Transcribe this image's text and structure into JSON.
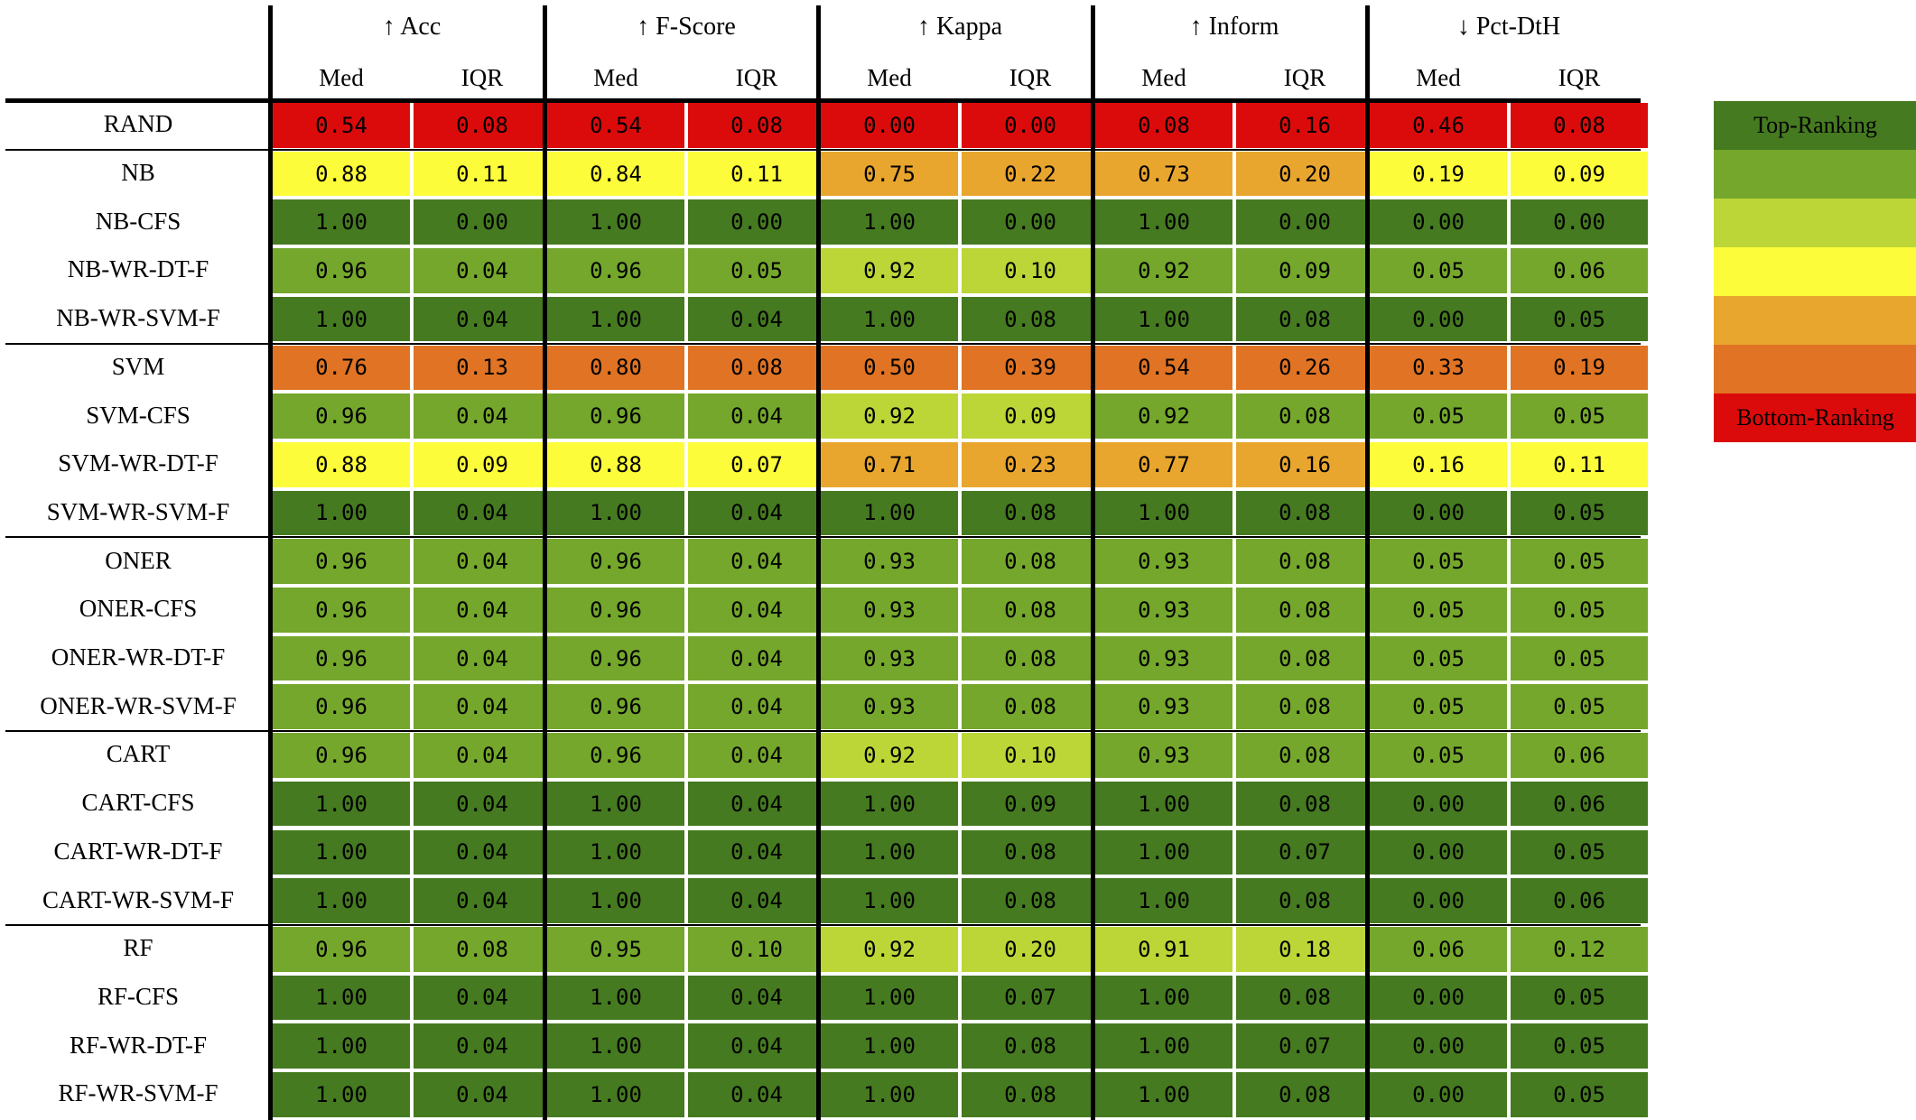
{
  "colors": {
    "darkgreen": "#457a20",
    "green": "#74a72b",
    "lightgreen": "#bcd637",
    "yellow": "#fdfc3a",
    "lightorange": "#e9a62e",
    "orange": "#e07324",
    "red": "#dc0b0b"
  },
  "metrics": [
    {
      "label": "↑ Acc"
    },
    {
      "label": "↑ F-Score"
    },
    {
      "label": "↑ Kappa"
    },
    {
      "label": "↑ Inform"
    },
    {
      "label": "↓ Pct-DtH"
    }
  ],
  "subheaders": [
    "Med",
    "IQR"
  ],
  "rows": [
    {
      "name": "RAND",
      "values": [
        "0.54",
        "0.08",
        "0.54",
        "0.08",
        "0.00",
        "0.00",
        "0.08",
        "0.16",
        "0.46",
        "0.08"
      ],
      "colors": [
        "red",
        "red",
        "red",
        "red",
        "red",
        "red",
        "red",
        "red",
        "red",
        "red"
      ]
    },
    {
      "name": "NB",
      "values": [
        "0.88",
        "0.11",
        "0.84",
        "0.11",
        "0.75",
        "0.22",
        "0.73",
        "0.20",
        "0.19",
        "0.09"
      ],
      "colors": [
        "yellow",
        "yellow",
        "yellow",
        "yellow",
        "lightorange",
        "lightorange",
        "lightorange",
        "lightorange",
        "yellow",
        "yellow"
      ]
    },
    {
      "name": "NB-CFS",
      "values": [
        "1.00",
        "0.00",
        "1.00",
        "0.00",
        "1.00",
        "0.00",
        "1.00",
        "0.00",
        "0.00",
        "0.00"
      ],
      "colors": [
        "darkgreen",
        "darkgreen",
        "darkgreen",
        "darkgreen",
        "darkgreen",
        "darkgreen",
        "darkgreen",
        "darkgreen",
        "darkgreen",
        "darkgreen"
      ]
    },
    {
      "name": "NB-WR-DT-F",
      "values": [
        "0.96",
        "0.04",
        "0.96",
        "0.05",
        "0.92",
        "0.10",
        "0.92",
        "0.09",
        "0.05",
        "0.06"
      ],
      "colors": [
        "green",
        "green",
        "green",
        "green",
        "lightgreen",
        "lightgreen",
        "green",
        "green",
        "green",
        "green"
      ]
    },
    {
      "name": "NB-WR-SVM-F",
      "values": [
        "1.00",
        "0.04",
        "1.00",
        "0.04",
        "1.00",
        "0.08",
        "1.00",
        "0.08",
        "0.00",
        "0.05"
      ],
      "colors": [
        "darkgreen",
        "darkgreen",
        "darkgreen",
        "darkgreen",
        "darkgreen",
        "darkgreen",
        "darkgreen",
        "darkgreen",
        "darkgreen",
        "darkgreen"
      ]
    },
    {
      "name": "SVM",
      "values": [
        "0.76",
        "0.13",
        "0.80",
        "0.08",
        "0.50",
        "0.39",
        "0.54",
        "0.26",
        "0.33",
        "0.19"
      ],
      "colors": [
        "orange",
        "orange",
        "orange",
        "orange",
        "orange",
        "orange",
        "orange",
        "orange",
        "orange",
        "orange"
      ]
    },
    {
      "name": "SVM-CFS",
      "values": [
        "0.96",
        "0.04",
        "0.96",
        "0.04",
        "0.92",
        "0.09",
        "0.92",
        "0.08",
        "0.05",
        "0.05"
      ],
      "colors": [
        "green",
        "green",
        "green",
        "green",
        "lightgreen",
        "lightgreen",
        "green",
        "green",
        "green",
        "green"
      ]
    },
    {
      "name": "SVM-WR-DT-F",
      "values": [
        "0.88",
        "0.09",
        "0.88",
        "0.07",
        "0.71",
        "0.23",
        "0.77",
        "0.16",
        "0.16",
        "0.11"
      ],
      "colors": [
        "yellow",
        "yellow",
        "yellow",
        "yellow",
        "lightorange",
        "lightorange",
        "lightorange",
        "lightorange",
        "yellow",
        "yellow"
      ]
    },
    {
      "name": "SVM-WR-SVM-F",
      "values": [
        "1.00",
        "0.04",
        "1.00",
        "0.04",
        "1.00",
        "0.08",
        "1.00",
        "0.08",
        "0.00",
        "0.05"
      ],
      "colors": [
        "darkgreen",
        "darkgreen",
        "darkgreen",
        "darkgreen",
        "darkgreen",
        "darkgreen",
        "darkgreen",
        "darkgreen",
        "darkgreen",
        "darkgreen"
      ]
    },
    {
      "name": "ONER",
      "values": [
        "0.96",
        "0.04",
        "0.96",
        "0.04",
        "0.93",
        "0.08",
        "0.93",
        "0.08",
        "0.05",
        "0.05"
      ],
      "colors": [
        "green",
        "green",
        "green",
        "green",
        "green",
        "green",
        "green",
        "green",
        "green",
        "green"
      ]
    },
    {
      "name": "ONER-CFS",
      "values": [
        "0.96",
        "0.04",
        "0.96",
        "0.04",
        "0.93",
        "0.08",
        "0.93",
        "0.08",
        "0.05",
        "0.05"
      ],
      "colors": [
        "green",
        "green",
        "green",
        "green",
        "green",
        "green",
        "green",
        "green",
        "green",
        "green"
      ]
    },
    {
      "name": "ONER-WR-DT-F",
      "values": [
        "0.96",
        "0.04",
        "0.96",
        "0.04",
        "0.93",
        "0.08",
        "0.93",
        "0.08",
        "0.05",
        "0.05"
      ],
      "colors": [
        "green",
        "green",
        "green",
        "green",
        "green",
        "green",
        "green",
        "green",
        "green",
        "green"
      ]
    },
    {
      "name": "ONER-WR-SVM-F",
      "values": [
        "0.96",
        "0.04",
        "0.96",
        "0.04",
        "0.93",
        "0.08",
        "0.93",
        "0.08",
        "0.05",
        "0.05"
      ],
      "colors": [
        "green",
        "green",
        "green",
        "green",
        "green",
        "green",
        "green",
        "green",
        "green",
        "green"
      ]
    },
    {
      "name": "CART",
      "values": [
        "0.96",
        "0.04",
        "0.96",
        "0.04",
        "0.92",
        "0.10",
        "0.93",
        "0.08",
        "0.05",
        "0.06"
      ],
      "colors": [
        "green",
        "green",
        "green",
        "green",
        "lightgreen",
        "lightgreen",
        "green",
        "green",
        "green",
        "green"
      ]
    },
    {
      "name": "CART-CFS",
      "values": [
        "1.00",
        "0.04",
        "1.00",
        "0.04",
        "1.00",
        "0.09",
        "1.00",
        "0.08",
        "0.00",
        "0.06"
      ],
      "colors": [
        "darkgreen",
        "darkgreen",
        "darkgreen",
        "darkgreen",
        "darkgreen",
        "darkgreen",
        "darkgreen",
        "darkgreen",
        "darkgreen",
        "darkgreen"
      ]
    },
    {
      "name": "CART-WR-DT-F",
      "values": [
        "1.00",
        "0.04",
        "1.00",
        "0.04",
        "1.00",
        "0.08",
        "1.00",
        "0.07",
        "0.00",
        "0.05"
      ],
      "colors": [
        "darkgreen",
        "darkgreen",
        "darkgreen",
        "darkgreen",
        "darkgreen",
        "darkgreen",
        "darkgreen",
        "darkgreen",
        "darkgreen",
        "darkgreen"
      ]
    },
    {
      "name": "CART-WR-SVM-F",
      "values": [
        "1.00",
        "0.04",
        "1.00",
        "0.04",
        "1.00",
        "0.08",
        "1.00",
        "0.08",
        "0.00",
        "0.06"
      ],
      "colors": [
        "darkgreen",
        "darkgreen",
        "darkgreen",
        "darkgreen",
        "darkgreen",
        "darkgreen",
        "darkgreen",
        "darkgreen",
        "darkgreen",
        "darkgreen"
      ]
    },
    {
      "name": "RF",
      "values": [
        "0.96",
        "0.08",
        "0.95",
        "0.10",
        "0.92",
        "0.20",
        "0.91",
        "0.18",
        "0.06",
        "0.12"
      ],
      "colors": [
        "green",
        "green",
        "green",
        "green",
        "lightgreen",
        "lightgreen",
        "lightgreen",
        "lightgreen",
        "green",
        "green"
      ]
    },
    {
      "name": "RF-CFS",
      "values": [
        "1.00",
        "0.04",
        "1.00",
        "0.04",
        "1.00",
        "0.07",
        "1.00",
        "0.08",
        "0.00",
        "0.05"
      ],
      "colors": [
        "darkgreen",
        "darkgreen",
        "darkgreen",
        "darkgreen",
        "darkgreen",
        "darkgreen",
        "darkgreen",
        "darkgreen",
        "darkgreen",
        "darkgreen"
      ]
    },
    {
      "name": "RF-WR-DT-F",
      "values": [
        "1.00",
        "0.04",
        "1.00",
        "0.04",
        "1.00",
        "0.08",
        "1.00",
        "0.07",
        "0.00",
        "0.05"
      ],
      "colors": [
        "darkgreen",
        "darkgreen",
        "darkgreen",
        "darkgreen",
        "darkgreen",
        "darkgreen",
        "darkgreen",
        "darkgreen",
        "darkgreen",
        "darkgreen"
      ]
    },
    {
      "name": "RF-WR-SVM-F",
      "values": [
        "1.00",
        "0.04",
        "1.00",
        "0.04",
        "1.00",
        "0.08",
        "1.00",
        "0.08",
        "0.00",
        "0.05"
      ],
      "colors": [
        "darkgreen",
        "darkgreen",
        "darkgreen",
        "darkgreen",
        "darkgreen",
        "darkgreen",
        "darkgreen",
        "darkgreen",
        "darkgreen",
        "darkgreen"
      ]
    }
  ],
  "legend": {
    "top_label": "Top-Ranking",
    "bottom_label": "Bottom-Ranking",
    "scale": [
      "darkgreen",
      "green",
      "lightgreen",
      "yellow",
      "lightorange",
      "orange",
      "red"
    ]
  }
}
